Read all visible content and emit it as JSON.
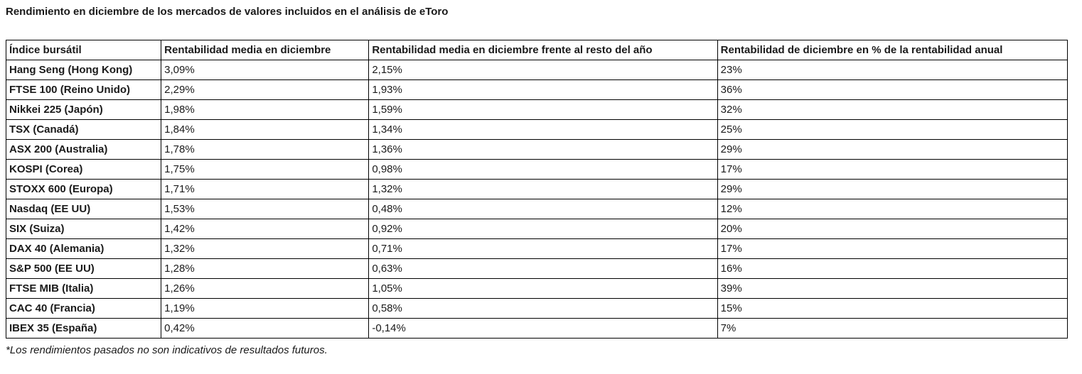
{
  "page": {
    "title": "Rendimiento en diciembre de los mercados de valores incluidos en el análisis de eToro",
    "footnote": "*Los rendimientos pasados no son indicativos de resultados futuros."
  },
  "chart_data": {
    "type": "table",
    "title": "Rendimiento en diciembre de los mercados de valores incluidos en el análisis de eToro",
    "columns": [
      "Índice bursátil",
      "Rentabilidad media en diciembre",
      "Rentabilidad media en diciembre frente al resto del año",
      "Rentabilidad de diciembre en % de la rentabilidad anual"
    ],
    "rows": [
      [
        "Hang Seng (Hong Kong)",
        "3,09%",
        "2,15%",
        "23%"
      ],
      [
        "FTSE 100 (Reino Unido)",
        "2,29%",
        "1,93%",
        "36%"
      ],
      [
        "Nikkei 225 (Japón)",
        "1,98%",
        "1,59%",
        "32%"
      ],
      [
        "TSX (Canadá)",
        "1,84%",
        "1,34%",
        "25%"
      ],
      [
        "ASX 200 (Australia)",
        "1,78%",
        "1,36%",
        "29%"
      ],
      [
        "KOSPI (Corea)",
        "1,75%",
        "0,98%",
        "17%"
      ],
      [
        "STOXX 600 (Europa)",
        "1,71%",
        "1,32%",
        "29%"
      ],
      [
        "Nasdaq (EE UU)",
        "1,53%",
        "0,48%",
        "12%"
      ],
      [
        "SIX (Suiza)",
        "1,42%",
        "0,92%",
        "20%"
      ],
      [
        "DAX 40 (Alemania)",
        "1,32%",
        "0,71%",
        "17%"
      ],
      [
        "S&P 500 (EE UU)",
        "1,28%",
        "0,63%",
        "16%"
      ],
      [
        "FTSE MIB (Italia)",
        "1,26%",
        "1,05%",
        "39%"
      ],
      [
        "CAC 40 (Francia)",
        "1,19%",
        "0,58%",
        "15%"
      ],
      [
        "IBEX 35 (España)",
        "0,42%",
        "-0,14%",
        "7%"
      ]
    ],
    "notes": "*Los rendimientos pasados no son indicativos de resultados futuros.",
    "colors": {
      "text": "#1a1a1a",
      "border": "#000000",
      "background": "#ffffff"
    }
  }
}
